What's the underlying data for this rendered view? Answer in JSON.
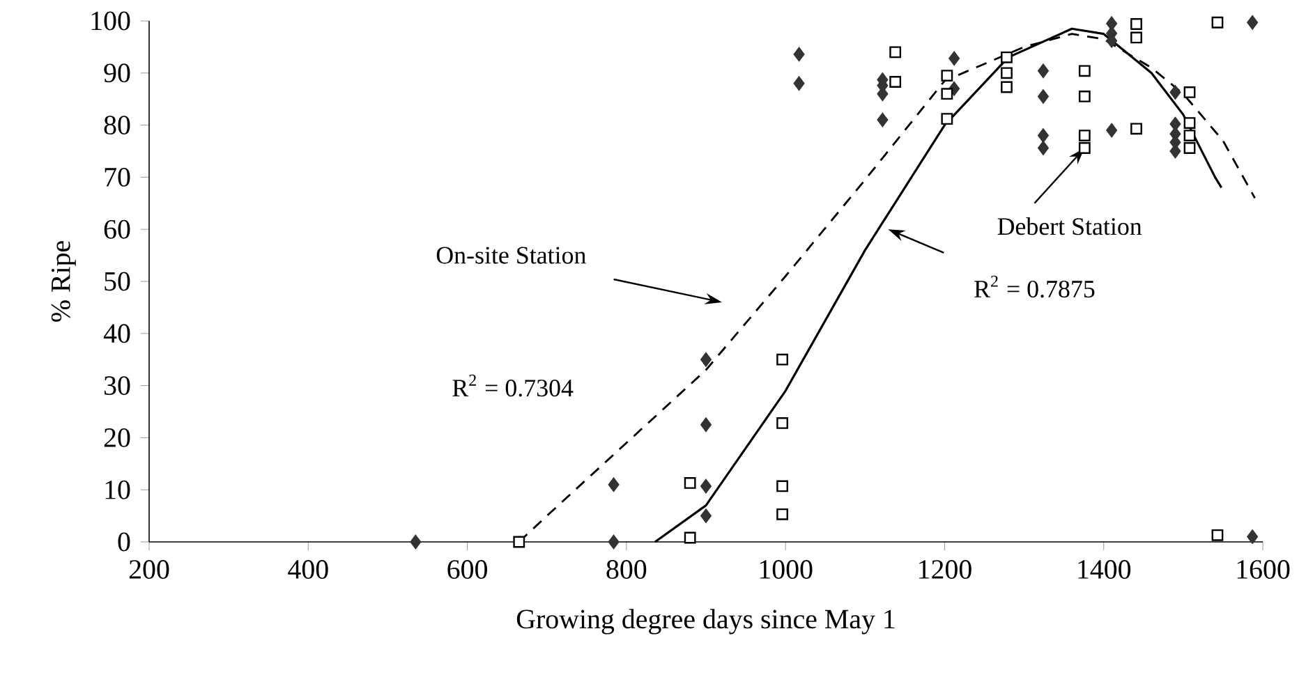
{
  "chart_data": {
    "type": "scatter",
    "xlabel": "Growing degree days since May 1",
    "ylabel": "% Ripe",
    "xlim": [
      200,
      1600
    ],
    "xticks": [
      200,
      400,
      600,
      800,
      1000,
      1200,
      1400,
      1600
    ],
    "ylim": [
      0,
      100
    ],
    "yticks": [
      0,
      10,
      20,
      30,
      40,
      50,
      60,
      70,
      80,
      90,
      100
    ],
    "series": [
      {
        "marker": "diamond",
        "color": "#333333",
        "x": [
          535,
          784,
          784,
          900,
          900,
          900,
          900,
          1017,
          1017,
          1122,
          1122,
          1122,
          1122,
          1212,
          1212,
          1324,
          1324,
          1324,
          1324,
          1410,
          1410,
          1410,
          1410,
          1490,
          1490,
          1490,
          1490,
          1490,
          1587,
          1587
        ],
        "values": [
          0,
          0,
          11,
          35,
          22.5,
          10.7,
          5,
          93.6,
          88,
          88.7,
          87.6,
          86,
          81,
          92.8,
          87,
          90.4,
          85.5,
          78,
          75.6,
          99.5,
          97.6,
          96.2,
          79,
          86.3,
          80.2,
          78.3,
          76.7,
          75,
          99.7,
          1
        ]
      },
      {
        "marker": "square",
        "color": "#000000",
        "x": [
          665,
          880,
          880,
          996,
          996,
          996,
          996,
          1138,
          1138,
          1203,
          1203,
          1203,
          1278,
          1278,
          1278,
          1376,
          1376,
          1376,
          1376,
          1441,
          1441,
          1441,
          1508,
          1508,
          1508,
          1508,
          1543,
          1543
        ],
        "values": [
          0,
          11.3,
          0.8,
          35,
          22.8,
          10.7,
          5.3,
          94,
          88.3,
          89.5,
          86,
          81.2,
          93,
          90,
          87.3,
          90.4,
          85.5,
          78,
          75.6,
          99.4,
          96.8,
          79.3,
          86.3,
          80.4,
          78,
          75.6,
          99.7,
          1.3
        ]
      },
      {
        "type": "line",
        "line_style": "dashed",
        "marker": "none",
        "color": "#000000",
        "x": [
          665,
          700,
          800,
          900,
          950,
          1000,
          1100,
          1200,
          1300,
          1360,
          1400,
          1460,
          1500,
          1550,
          1590
        ],
        "values": [
          0,
          5,
          19,
          33,
          42,
          51,
          69.5,
          88.5,
          95,
          97.5,
          96.5,
          91,
          86,
          77,
          66
        ]
      },
      {
        "type": "line",
        "line_style": "solid",
        "marker": "none",
        "color": "#000000",
        "x": [
          836,
          900,
          1000,
          1100,
          1200,
          1280,
          1360,
          1400,
          1460,
          1500,
          1540,
          1548
        ],
        "values": [
          0,
          7,
          29,
          56,
          80,
          93,
          98.5,
          97.5,
          90,
          82,
          70,
          68
        ]
      }
    ],
    "annotations": [
      "On-site Station",
      "R$^{2}$ = 0.7304",
      {
        "text": "Debert Station",
        "x": 1376,
        "y": 75.6
      },
      "R$^{2}$ = 0.7875"
    ]
  }
}
